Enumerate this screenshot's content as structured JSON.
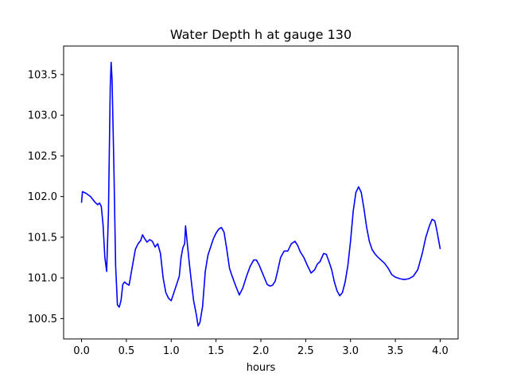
{
  "chart_data": {
    "type": "line",
    "title": "Water Depth h at gauge 130",
    "xlabel": "hours",
    "ylabel": "",
    "xlim": [
      -0.2,
      4.2
    ],
    "ylim": [
      100.25,
      103.85
    ],
    "xticks": [
      0.0,
      0.5,
      1.0,
      1.5,
      2.0,
      2.5,
      3.0,
      3.5,
      4.0
    ],
    "xtick_labels": [
      "0.0",
      "0.5",
      "1.0",
      "1.5",
      "2.0",
      "2.5",
      "3.0",
      "3.5",
      "4.0"
    ],
    "yticks": [
      100.5,
      101.0,
      101.5,
      102.0,
      102.5,
      103.0,
      103.5
    ],
    "ytick_labels": [
      "100.5",
      "101.0",
      "101.5",
      "102.0",
      "102.5",
      "103.0",
      "103.5"
    ],
    "grid": false,
    "series": [
      {
        "color": "#0000ff",
        "x": [
          0.0,
          0.01,
          0.05,
          0.1,
          0.15,
          0.18,
          0.2,
          0.22,
          0.24,
          0.26,
          0.28,
          0.3,
          0.32,
          0.33,
          0.34,
          0.36,
          0.38,
          0.4,
          0.42,
          0.44,
          0.46,
          0.48,
          0.5,
          0.53,
          0.56,
          0.6,
          0.63,
          0.66,
          0.68,
          0.7,
          0.73,
          0.76,
          0.79,
          0.82,
          0.85,
          0.88,
          0.91,
          0.94,
          0.97,
          1.0,
          1.03,
          1.06,
          1.09,
          1.11,
          1.13,
          1.15,
          1.16,
          1.18,
          1.2,
          1.22,
          1.25,
          1.28,
          1.3,
          1.32,
          1.35,
          1.38,
          1.41,
          1.44,
          1.47,
          1.5,
          1.53,
          1.56,
          1.59,
          1.62,
          1.65,
          1.68,
          1.72,
          1.76,
          1.8,
          1.84,
          1.88,
          1.92,
          1.95,
          1.98,
          2.01,
          2.04,
          2.07,
          2.1,
          2.13,
          2.16,
          2.19,
          2.22,
          2.26,
          2.3,
          2.34,
          2.38,
          2.41,
          2.44,
          2.48,
          2.52,
          2.56,
          2.6,
          2.63,
          2.66,
          2.7,
          2.73,
          2.76,
          2.79,
          2.82,
          2.85,
          2.88,
          2.91,
          2.94,
          2.97,
          3.0,
          3.03,
          3.06,
          3.09,
          3.12,
          3.15,
          3.18,
          3.21,
          3.24,
          3.27,
          3.3,
          3.34,
          3.38,
          3.42,
          3.46,
          3.5,
          3.55,
          3.6,
          3.65,
          3.7,
          3.75,
          3.8,
          3.84,
          3.88,
          3.91,
          3.94,
          3.96,
          3.98,
          4.0
        ],
        "y": [
          101.93,
          102.06,
          102.04,
          102.0,
          101.93,
          101.9,
          101.92,
          101.88,
          101.65,
          101.25,
          101.08,
          101.8,
          103.35,
          103.65,
          103.45,
          102.4,
          101.15,
          100.67,
          100.64,
          100.72,
          100.92,
          100.95,
          100.93,
          100.91,
          101.1,
          101.35,
          101.42,
          101.46,
          101.53,
          101.49,
          101.44,
          101.47,
          101.45,
          101.38,
          101.42,
          101.3,
          101.0,
          100.82,
          100.75,
          100.72,
          100.82,
          100.92,
          101.02,
          101.25,
          101.37,
          101.42,
          101.64,
          101.42,
          101.2,
          101.0,
          100.72,
          100.55,
          100.41,
          100.45,
          100.65,
          101.08,
          101.28,
          101.38,
          101.48,
          101.55,
          101.6,
          101.62,
          101.56,
          101.35,
          101.12,
          101.02,
          100.9,
          100.79,
          100.88,
          101.02,
          101.14,
          101.22,
          101.22,
          101.16,
          101.08,
          101.0,
          100.92,
          100.9,
          100.91,
          100.96,
          101.1,
          101.25,
          101.33,
          101.33,
          101.42,
          101.45,
          101.4,
          101.32,
          101.25,
          101.15,
          101.06,
          101.1,
          101.17,
          101.2,
          101.3,
          101.29,
          101.2,
          101.1,
          100.95,
          100.84,
          100.78,
          100.82,
          100.95,
          101.15,
          101.45,
          101.82,
          102.05,
          102.12,
          102.05,
          101.85,
          101.62,
          101.45,
          101.35,
          101.3,
          101.26,
          101.22,
          101.18,
          101.12,
          101.04,
          101.01,
          100.99,
          100.98,
          100.99,
          101.02,
          101.1,
          101.3,
          101.5,
          101.64,
          101.72,
          101.7,
          101.6,
          101.48,
          101.36
        ]
      }
    ]
  }
}
